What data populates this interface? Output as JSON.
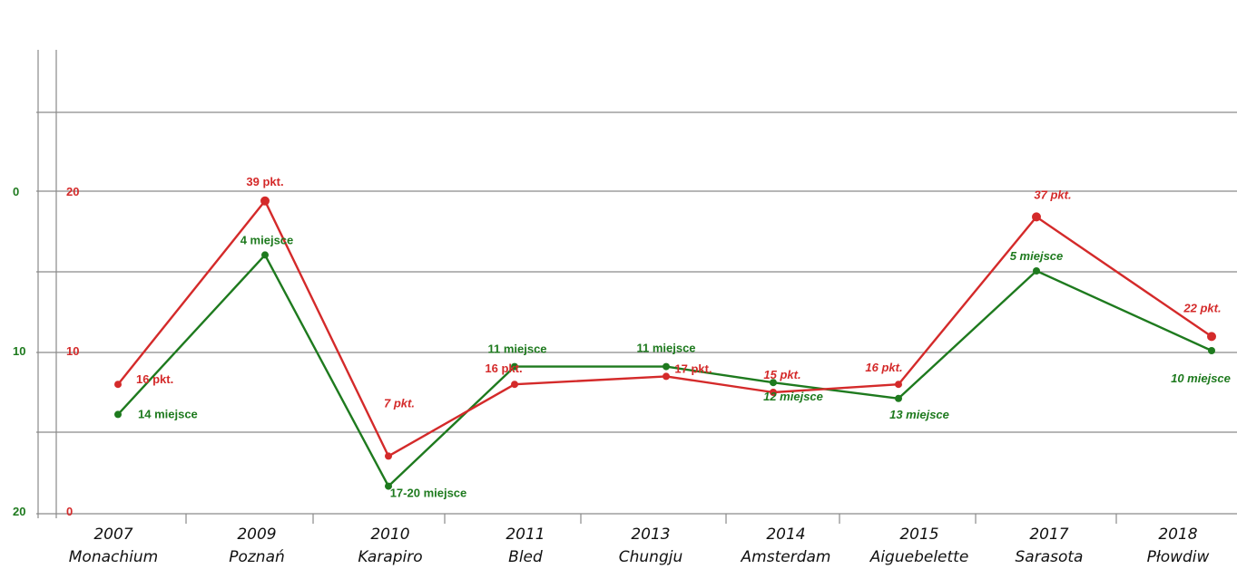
{
  "chart_data": {
    "type": "line",
    "categories": [
      {
        "year": "2007",
        "place": "Monachium"
      },
      {
        "year": "2009",
        "place": "Poznań"
      },
      {
        "year": "2010",
        "place": "Karapiro"
      },
      {
        "year": "2011",
        "place": "Bled"
      },
      {
        "year": "2013",
        "place": "Chungju"
      },
      {
        "year": "2014",
        "place": "Amsterdam"
      },
      {
        "year": "2015",
        "place": "Aiguebelette"
      },
      {
        "year": "2017",
        "place": "Sarasota"
      },
      {
        "year": "2018",
        "place": "Płowdiw"
      }
    ],
    "series": [
      {
        "axis": "points",
        "color": "#d42a2a",
        "values": [
          16,
          39,
          7,
          16,
          17,
          15,
          16,
          37,
          22
        ],
        "labels": [
          "16 pkt.",
          "39 pkt.",
          "7 pkt.",
          "16 pkt.",
          "17 pkt.",
          "15 pkt.",
          "16 pkt.",
          "37 pkt.",
          "22 pkt."
        ]
      },
      {
        "axis": "place",
        "color": "#1e7a1e",
        "values": [
          14,
          4,
          18.5,
          11,
          11,
          12,
          13,
          5,
          10
        ],
        "labels": [
          "14 miejsce",
          "4 miejsce",
          "17-20 miejsce",
          "11 miejsce",
          "11 miejsce",
          "12 miejsce",
          "13 miejsce",
          "5 miejsce",
          "10 miejsce"
        ]
      }
    ],
    "left_axis": {
      "color": "#1e7a1e",
      "ticks": [
        "0",
        "10",
        "20"
      ],
      "range": [
        0,
        20
      ],
      "inverted": true
    },
    "right_axis": {
      "color": "#d42a2a",
      "ticks": [
        "20",
        "10",
        "0"
      ],
      "range": [
        0,
        20
      ]
    },
    "grid": true
  }
}
